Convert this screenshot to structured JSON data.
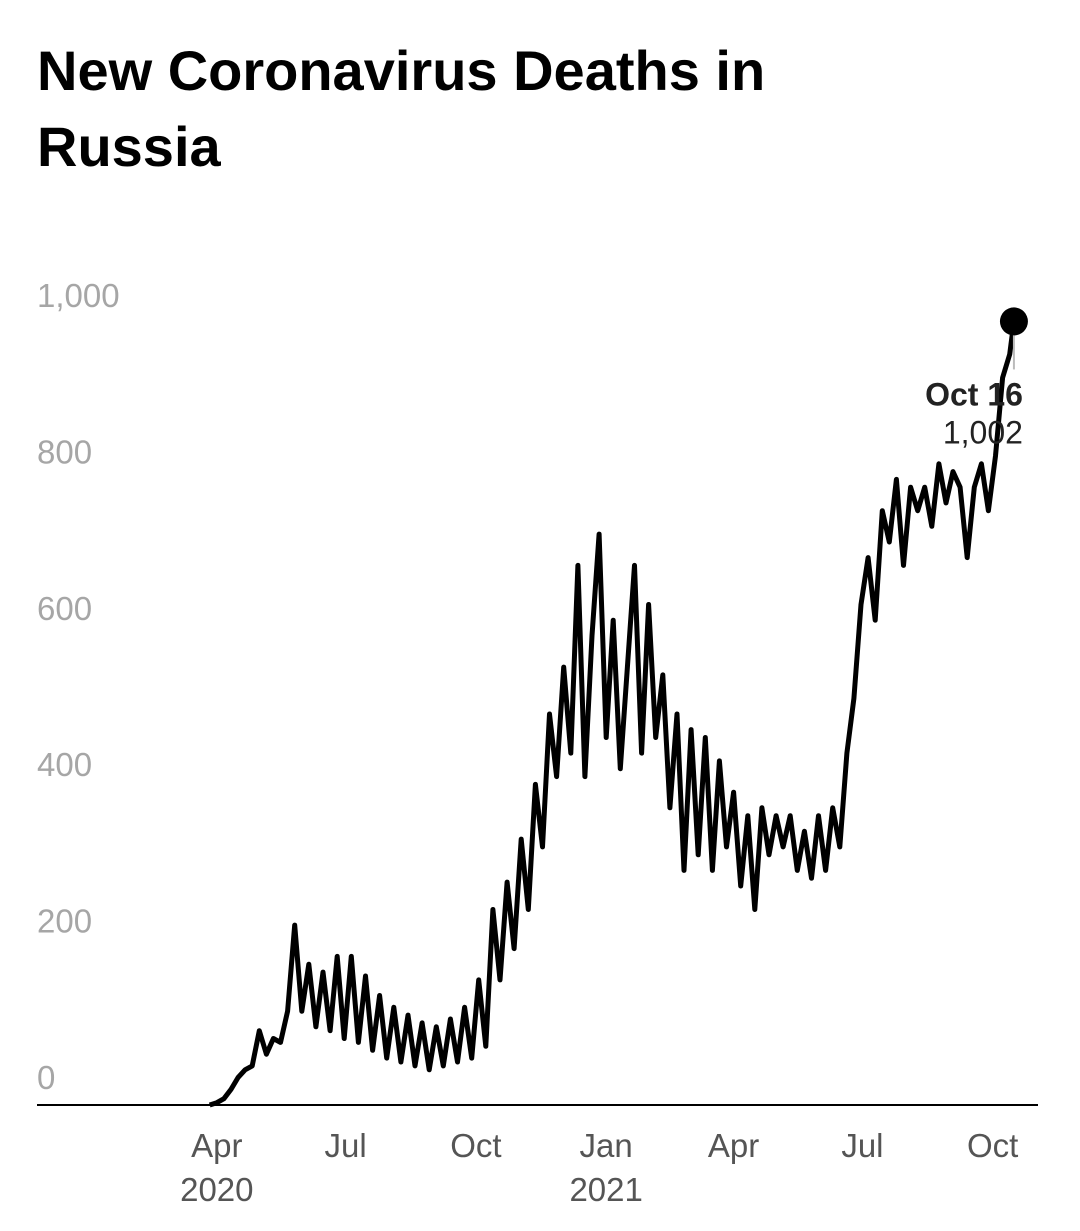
{
  "chart_data": {
    "type": "line",
    "title": "New Coronavirus Deaths in Russia",
    "x": [
      86,
      91,
      96,
      101,
      106,
      111,
      116,
      121,
      126,
      131,
      136,
      141,
      146,
      151,
      156,
      161,
      166,
      171,
      176,
      181,
      186,
      191,
      196,
      201,
      206,
      211,
      216,
      221,
      226,
      231,
      236,
      241,
      246,
      251,
      256,
      261,
      266,
      271,
      276,
      281,
      286,
      291,
      296,
      301,
      306,
      311,
      316,
      321,
      326,
      331,
      336,
      341,
      346,
      351,
      356,
      361,
      366,
      371,
      376,
      381,
      386,
      391,
      396,
      401,
      406,
      411,
      416,
      421,
      426,
      431,
      436,
      441,
      446,
      451,
      456,
      461,
      466,
      471,
      476,
      481,
      486,
      491,
      496,
      501,
      506,
      511,
      516,
      521,
      526,
      531,
      536,
      541,
      546,
      551,
      556,
      561,
      566,
      571,
      576,
      581,
      586,
      591,
      596,
      601,
      606,
      611,
      616,
      621,
      626,
      631,
      636,
      641,
      646,
      651,
      654
    ],
    "values": [
      0,
      3,
      8,
      20,
      35,
      45,
      50,
      95,
      65,
      85,
      80,
      120,
      230,
      120,
      180,
      100,
      170,
      95,
      190,
      85,
      190,
      80,
      165,
      70,
      140,
      60,
      125,
      55,
      115,
      50,
      105,
      45,
      100,
      50,
      110,
      55,
      125,
      60,
      160,
      75,
      250,
      160,
      285,
      200,
      340,
      250,
      410,
      330,
      500,
      420,
      560,
      450,
      690,
      420,
      600,
      730,
      470,
      620,
      430,
      560,
      690,
      450,
      640,
      470,
      550,
      380,
      500,
      300,
      480,
      320,
      470,
      300,
      440,
      330,
      400,
      280,
      370,
      250,
      380,
      320,
      370,
      330,
      370,
      300,
      350,
      290,
      370,
      300,
      380,
      330,
      450,
      520,
      640,
      700,
      620,
      760,
      720,
      800,
      690,
      790,
      760,
      790,
      740,
      820,
      770,
      810,
      790,
      700,
      790,
      820,
      760,
      830,
      930,
      960,
      1002
    ],
    "value_labels": [
      null,
      null,
      null,
      null,
      null,
      null,
      null,
      null,
      null,
      null,
      null,
      null,
      null,
      null,
      null,
      null,
      null,
      null,
      null,
      null,
      null,
      null,
      null,
      null,
      null,
      null,
      null,
      null,
      null,
      null,
      null,
      null,
      null,
      null,
      null,
      null,
      null,
      null,
      null,
      null,
      null,
      null,
      null,
      null,
      null,
      null,
      null,
      null,
      null,
      null,
      null,
      null,
      null,
      null,
      null,
      null,
      null,
      null,
      null,
      null,
      null,
      null,
      null,
      null,
      null,
      null,
      null,
      null,
      null,
      null,
      null,
      null,
      null,
      null,
      null,
      null,
      null,
      null,
      null,
      null,
      null,
      null,
      null,
      null,
      null,
      null,
      null,
      null,
      null,
      null,
      null,
      null,
      null,
      null,
      null,
      null,
      null,
      null,
      null,
      null,
      null,
      null,
      null,
      null,
      null,
      null,
      null,
      null,
      null,
      null,
      null,
      null,
      null,
      null,
      "1,002"
    ],
    "annotation_label": "Oct 16",
    "color": "#000000",
    "xlim": [
      -36,
      671
    ],
    "xticks": [
      {
        "value": 91,
        "label": "Apr"
      },
      {
        "value": 182,
        "label": "Jul"
      },
      {
        "value": 274,
        "label": "Oct"
      },
      {
        "value": 366,
        "label": "Jan"
      },
      {
        "value": 456,
        "label": "Apr"
      },
      {
        "value": 547,
        "label": "Jul"
      },
      {
        "value": 639,
        "label": "Oct"
      }
    ],
    "xtick_years": [
      {
        "value": 91,
        "label": "2020"
      },
      {
        "value": 366,
        "label": "2021"
      }
    ],
    "ylim": [
      0,
      1000
    ],
    "yticks": [
      0,
      200,
      400,
      600,
      800,
      {
        "value": 1000,
        "label": "1,000"
      }
    ],
    "grid": false
  }
}
